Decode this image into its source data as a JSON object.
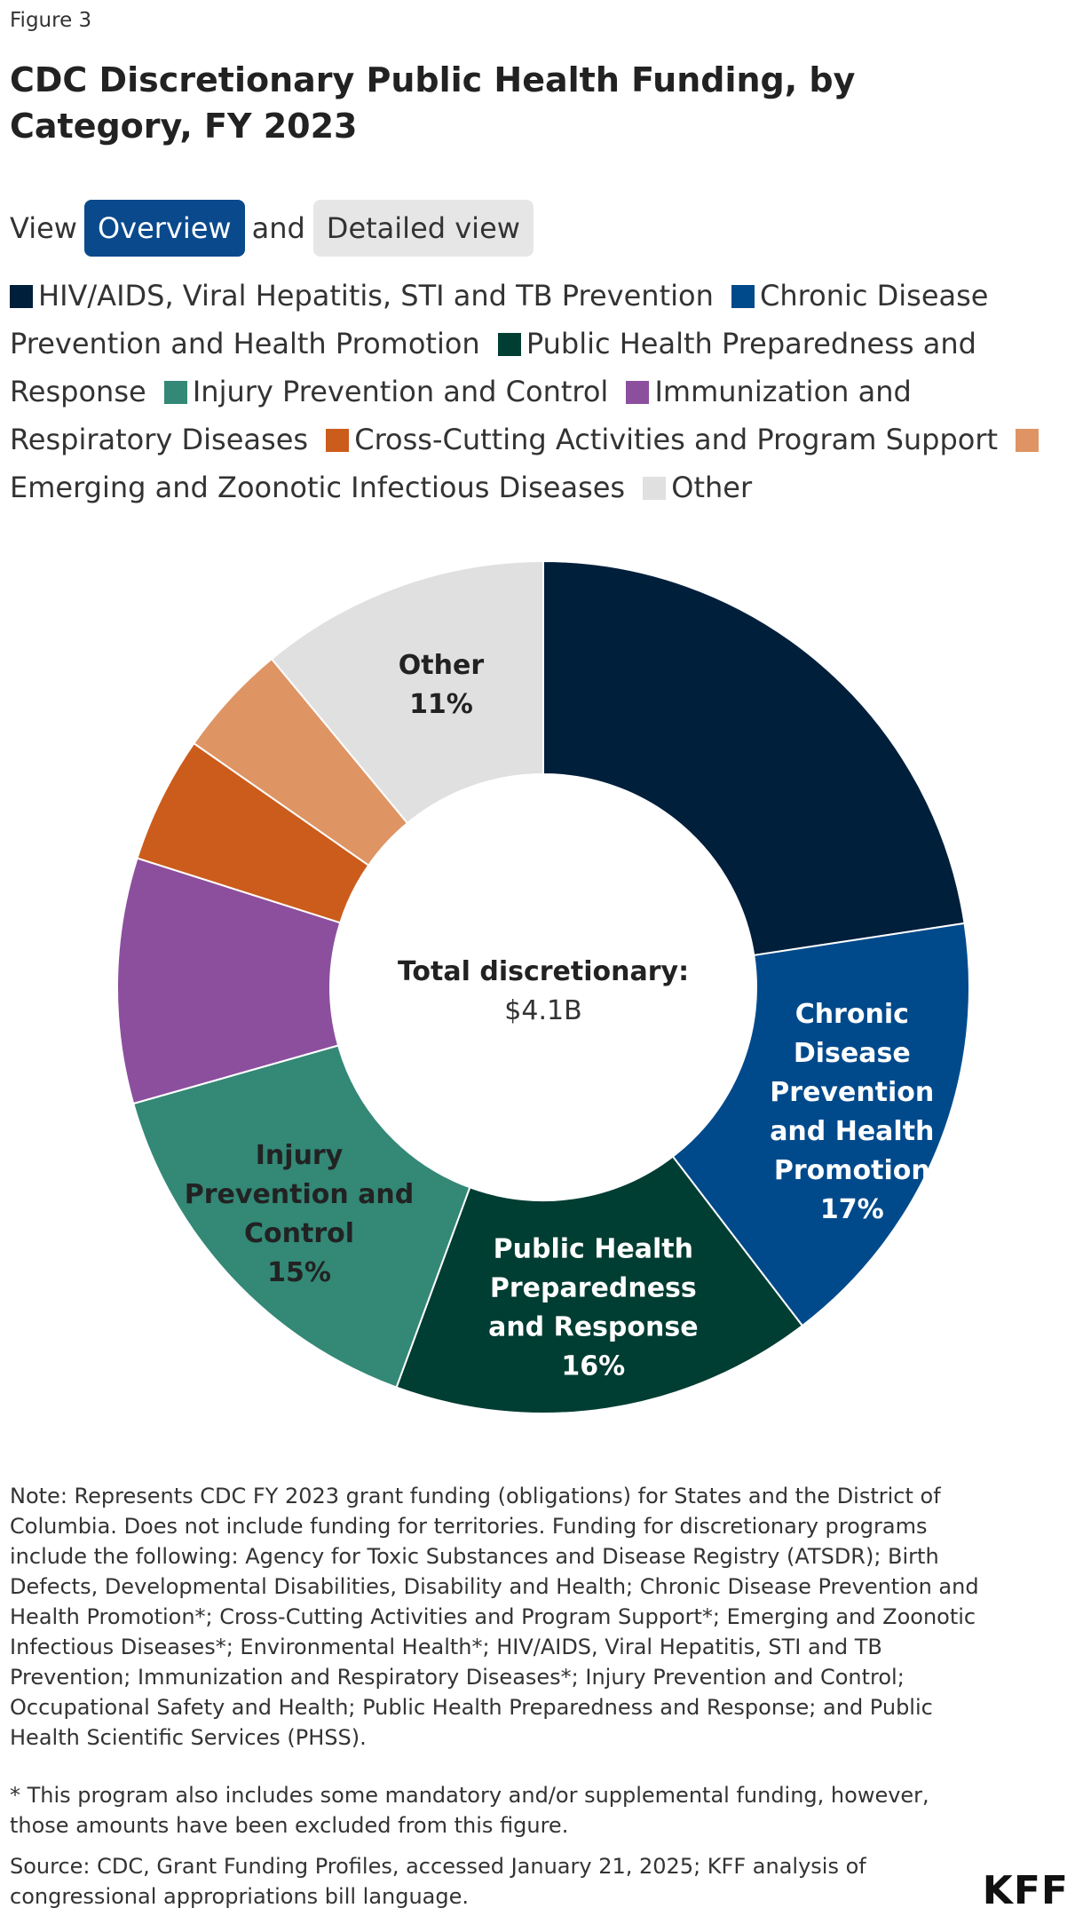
{
  "figure_label": "Figure 3",
  "title": "CDC Discretionary Public Health Funding, by Category, FY 2023",
  "view_toggle": {
    "prefix": "View",
    "overview_label": "Overview",
    "conjunction": "and",
    "detailed_label": "Detailed view"
  },
  "legend": [
    {
      "label": "HIV/AIDS, Viral Hepatitis, STI and TB Prevention",
      "color": "#001f3b"
    },
    {
      "label": "Chronic Disease Prevention and Health Promotion",
      "color": "#004a8c"
    },
    {
      "label": "Public Health Preparedness and Response",
      "color": "#003d32"
    },
    {
      "label": "Injury Prevention and Control",
      "color": "#338876"
    },
    {
      "label": "Immunization and Respiratory Diseases",
      "color": "#8c4f9e"
    },
    {
      "label": "Cross-Cutting Activities and Program Support",
      "color": "#cc5c1c"
    },
    {
      "label": "Emerging and Zoonotic Infectious Diseases",
      "color": "#df9464"
    },
    {
      "label": "Other",
      "color": "#e0e0e0"
    }
  ],
  "chart_data": {
    "type": "pie",
    "variant": "donut",
    "title": "CDC Discretionary Public Health Funding, by Category, FY 2023",
    "center_title": "Total discretionary:",
    "center_value": "$4.1B",
    "start_angle_deg": 0,
    "direction": "clockwise",
    "slices": [
      {
        "name": "HIV/AIDS, Viral Hepatitis, STI and TB Prevention",
        "value": 22.6,
        "color": "#001f3b",
        "label_lines": [],
        "label_color": "#ffffff"
      },
      {
        "name": "Chronic Disease Prevention and Health Promotion",
        "value": 17,
        "color": "#004a8c",
        "label_lines": [
          "Chronic",
          "Disease",
          "Prevention",
          "and Health",
          "Promotion",
          "17%"
        ],
        "label_color": "#ffffff"
      },
      {
        "name": "Public Health Preparedness and Response",
        "value": 16,
        "color": "#003d32",
        "label_lines": [
          "Public Health",
          "Preparedness",
          "and Response",
          "16%"
        ],
        "label_color": "#ffffff"
      },
      {
        "name": "Injury Prevention and Control",
        "value": 15,
        "color": "#338876",
        "label_lines": [
          "Injury",
          "Prevention and",
          "Control",
          "15%"
        ],
        "label_color": "#222222"
      },
      {
        "name": "Immunization and Respiratory Diseases",
        "value": 9.3,
        "color": "#8c4f9e",
        "label_lines": [],
        "label_color": "#ffffff"
      },
      {
        "name": "Cross-Cutting Activities and Program Support",
        "value": 4.8,
        "color": "#cc5c1c",
        "label_lines": [],
        "label_color": "#ffffff"
      },
      {
        "name": "Emerging and Zoonotic Infectious Diseases",
        "value": 4.3,
        "color": "#df9464",
        "label_lines": [],
        "label_color": "#222222"
      },
      {
        "name": "Other",
        "value": 11,
        "color": "#e0e0e0",
        "label_lines": [
          "Other",
          "11%"
        ],
        "label_color": "#222222"
      }
    ]
  },
  "note": "Note: Represents CDC FY 2023 grant funding (obligations) for States and the District of Columbia. Does not include funding for territories. Funding for discretionary programs include the following: Agency for Toxic Substances and Disease Registry (ATSDR); Birth Defects, Developmental Disabilities, Disability and Health; Chronic Disease Prevention and Health Promotion*; Cross-Cutting Activities and Program Support*; Emerging and Zoonotic Infectious Diseases*; Environmental Health*; HIV/AIDS, Viral Hepatitis, STI and TB Prevention; Immunization and Respiratory Diseases*; Injury Prevention and Control; Occupational Safety and Health; Public Health Preparedness and Response; and Public Health Scientific Services (PHSS).",
  "footnote": "* This program also includes some mandatory and/or supplemental funding, however, those amounts have been excluded from this figure.",
  "source": "Source: CDC, Grant Funding Profiles, accessed January 21, 2025; KFF analysis of congressional appropriations bill language.",
  "logo_text": "KFF"
}
